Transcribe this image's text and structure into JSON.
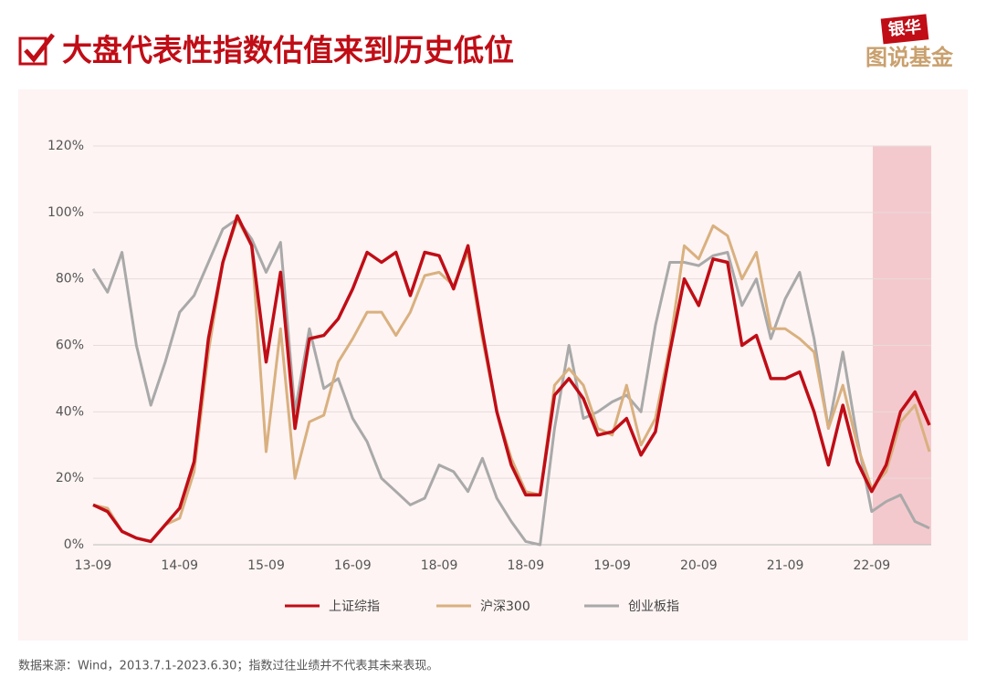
{
  "title": "大盘代表性指数估值来到历史低位",
  "logo": {
    "badge": "银华",
    "text": "图说基金"
  },
  "source": "数据来源：Wind，2013.7.1-2023.6.30；指数过往业绩并不代表其未来表现。",
  "chart_data": {
    "type": "line",
    "categories": [
      "13-09",
      null,
      null,
      null,
      null,
      null,
      "14-09",
      null,
      null,
      null,
      null,
      null,
      "15-09",
      null,
      null,
      null,
      null,
      null,
      "16-09",
      null,
      null,
      null,
      null,
      null,
      "18-09",
      null,
      null,
      null,
      null,
      null,
      "18-09",
      null,
      null,
      null,
      null,
      null,
      "19-09",
      null,
      null,
      null,
      null,
      null,
      "20-09",
      null,
      null,
      null,
      null,
      null,
      "21-09",
      null,
      null,
      null,
      null,
      null,
      "22-09",
      null,
      null,
      null,
      null
    ],
    "series": [
      {
        "name": "创业板指",
        "color": "#a9a9a9",
        "values": [
          83,
          76,
          88,
          60,
          42,
          55,
          70,
          75,
          85,
          95,
          98,
          92,
          82,
          91,
          40,
          65,
          47,
          50,
          38,
          31,
          20,
          16,
          12,
          14,
          24,
          22,
          16,
          26,
          14,
          7,
          1,
          0,
          35,
          60,
          38,
          40,
          43,
          45,
          40,
          66,
          85,
          85,
          84,
          87,
          88,
          72,
          80,
          62,
          74,
          82,
          62,
          35,
          58,
          32,
          10,
          13,
          15,
          7,
          5
        ]
      },
      {
        "name": "沪深300",
        "color": "#d9b07f",
        "values": [
          12,
          11,
          4,
          2,
          1,
          6,
          8,
          22,
          58,
          85,
          98,
          90,
          28,
          65,
          20,
          37,
          39,
          55,
          62,
          70,
          70,
          63,
          70,
          81,
          82,
          78,
          88,
          62,
          40,
          26,
          16,
          15,
          48,
          53,
          48,
          35,
          33,
          48,
          30,
          38,
          60,
          90,
          86,
          96,
          93,
          80,
          88,
          65,
          65,
          62,
          58,
          35,
          48,
          30,
          17,
          22,
          37,
          42,
          28
        ]
      },
      {
        "name": "上证综指",
        "color": "#c00d16",
        "values": [
          12,
          10,
          4,
          2,
          1,
          6,
          11,
          25,
          62,
          85,
          99,
          90,
          55,
          82,
          35,
          62,
          63,
          68,
          77,
          88,
          85,
          88,
          75,
          88,
          87,
          77,
          90,
          64,
          40,
          24,
          15,
          15,
          45,
          50,
          44,
          33,
          34,
          38,
          27,
          34,
          58,
          80,
          72,
          86,
          85,
          60,
          63,
          50,
          50,
          52,
          40,
          24,
          42,
          25,
          16,
          24,
          40,
          46,
          36
        ]
      }
    ],
    "ylim": [
      0,
      120
    ],
    "yticks": [
      {
        "value": 0,
        "label": "0%"
      },
      {
        "value": 20,
        "label": "20%"
      },
      {
        "value": 40,
        "label": "40%"
      },
      {
        "value": 60,
        "label": "60%"
      },
      {
        "value": 80,
        "label": "80%"
      },
      {
        "value": 100,
        "label": "100%"
      },
      {
        "value": 120,
        "label": "120%"
      }
    ],
    "grid": true
  }
}
